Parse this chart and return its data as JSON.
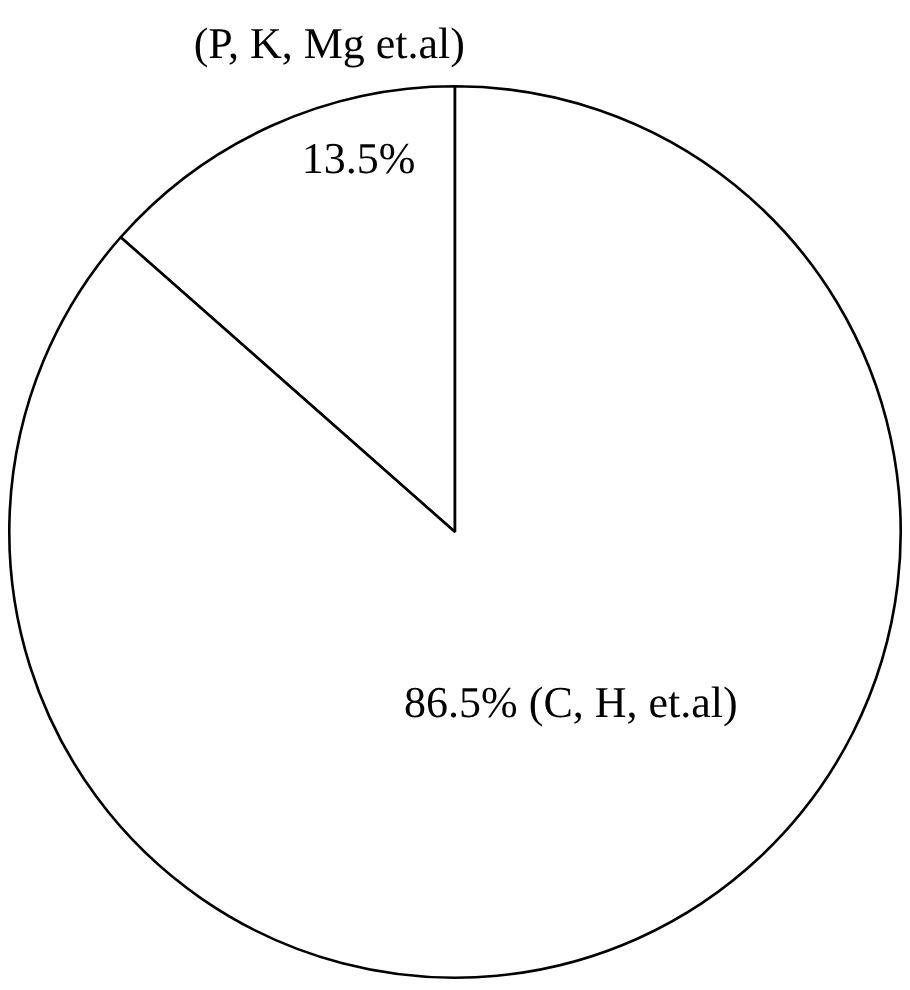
{
  "chart_data": {
    "type": "pie",
    "categories": [
      "(P, K, Mg et.al)",
      "(C, H, et.al)"
    ],
    "values": [
      13.5,
      86.5
    ],
    "colors": [
      "#ffffff",
      "#ffffff"
    ],
    "value_labels": [
      "13.5%",
      "86.5%"
    ],
    "legend": false
  }
}
